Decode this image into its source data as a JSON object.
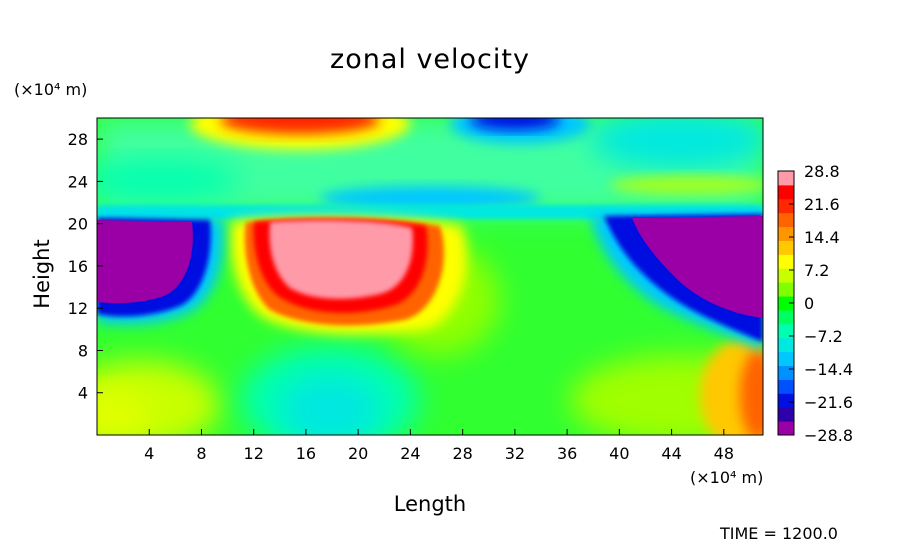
{
  "chart_data": {
    "type": "heatmap",
    "title": "zonal velocity",
    "xlabel": "Length",
    "ylabel": "Height",
    "x_unit": "(×10⁴ m)",
    "y_unit": "(×10⁴ m)",
    "xlim": [
      0,
      51
    ],
    "ylim": [
      0,
      30
    ],
    "x_ticks": [
      "4",
      "8",
      "12",
      "16",
      "20",
      "24",
      "28",
      "32",
      "36",
      "40",
      "44",
      "48"
    ],
    "x_tick_values": [
      4,
      8,
      12,
      16,
      20,
      24,
      28,
      32,
      36,
      40,
      44,
      48
    ],
    "y_ticks": [
      "4",
      "8",
      "12",
      "16",
      "20",
      "24",
      "28"
    ],
    "y_tick_values": [
      4,
      8,
      12,
      16,
      20,
      24,
      28
    ],
    "colorbar": {
      "labels": [
        "28.8",
        "21.6",
        "14.4",
        "7.2",
        "0",
        "−7.2",
        "−14.4",
        "−21.6",
        "−28.8"
      ],
      "levels": [
        28.8,
        21.6,
        14.4,
        7.2,
        0,
        -7.2,
        -14.4,
        -21.6,
        -28.8
      ],
      "colors": [
        "#9b00a6",
        "#2e00aa",
        "#0010e0",
        "#0050ff",
        "#0090ff",
        "#00c8ff",
        "#00e8e0",
        "#00ffb0",
        "#00ff60",
        "#00ff00",
        "#80ff00",
        "#c8ff00",
        "#ffff00",
        "#ffc800",
        "#ff9600",
        "#ff6400",
        "#ff2800",
        "#ff0000",
        "#ff9aa8"
      ]
    },
    "annotation_time": "TIME = 1200.0"
  }
}
